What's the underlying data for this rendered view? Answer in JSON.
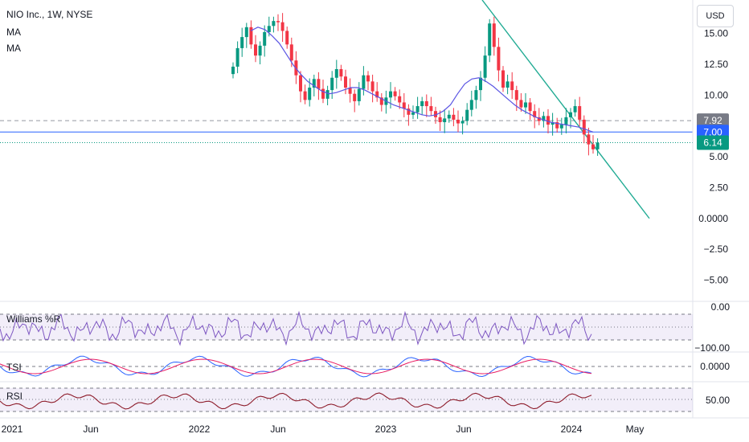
{
  "header": {
    "title": "NIO Inc., 1W, NYSE",
    "indicators": [
      "MA",
      "MA"
    ],
    "currency": "USD"
  },
  "price_labels": [
    {
      "text": "7.92",
      "value": 7.92,
      "color": "#787b86"
    },
    {
      "text": "7.00",
      "value": 7.0,
      "color": "#2962ff"
    },
    {
      "text": "6.14",
      "value": 6.14,
      "color": "#089981"
    }
  ],
  "panels": {
    "williams": {
      "label": "Williams %R",
      "ticks": [
        "0.00",
        "−100.00"
      ]
    },
    "tsi": {
      "label": "TSI",
      "ticks": [
        "0.0000"
      ]
    },
    "rsi": {
      "label": "RSI",
      "ticks": [
        "50.00"
      ]
    }
  },
  "colors": {
    "up": "#089981",
    "down": "#f23645",
    "ma": "#5b55e3",
    "trendline": "#22ab94",
    "hline": "#2962ff",
    "williams": "#7e57c2",
    "tsi_line": "#2962ff",
    "tsi_signal": "#e91e63",
    "rsi": "#8e1d2c"
  },
  "chart_data": {
    "type": "candlestick",
    "title": "NIO Inc., 1W, NYSE",
    "x_ticks": [
      "2021",
      "Jun",
      "2022",
      "Jun",
      "2023",
      "Jun",
      "2024",
      "May"
    ],
    "y_ticks": [
      "15.00",
      "12.50",
      "10.00",
      "5.00",
      "2.50",
      "0.0000",
      "−2.50",
      "−5.00"
    ],
    "ylim": [
      -6.5,
      16.2
    ],
    "candles_visible_close": [
      12.3,
      13.8,
      14.7,
      15.5,
      14.1,
      13.2,
      14.0,
      15.1,
      15.6,
      16.0,
      15.9,
      15.2,
      14.1,
      12.8,
      11.6,
      10.3,
      9.6,
      10.6,
      11.3,
      10.5,
      9.7,
      10.4,
      11.4,
      12.1,
      11.5,
      10.6,
      10.1,
      9.5,
      10.5,
      11.6,
      11.1,
      10.3,
      9.8,
      9.2,
      9.8,
      10.3,
      9.9,
      9.4,
      8.9,
      8.4,
      8.6,
      9.1,
      9.5,
      9.1,
      8.7,
      8.2,
      7.8,
      8.1,
      8.4,
      8.0,
      7.7,
      7.9,
      8.8,
      9.6,
      10.4,
      11.4,
      13.2,
      15.8,
      13.9,
      12.0,
      10.6,
      11.1,
      10.4,
      9.6,
      9.0,
      9.4,
      8.7,
      8.2,
      7.9,
      8.3,
      7.6,
      7.8,
      7.3,
      7.6,
      8.2,
      8.6,
      9.1,
      8.0,
      6.8,
      6.0,
      5.6,
      6.14
    ],
    "ma_line_visible": [
      15.2,
      15.5,
      15.3,
      14.8,
      14.2,
      13.3,
      12.4,
      11.7,
      11.1,
      10.7,
      10.3,
      10.1,
      10.2,
      10.4,
      10.6,
      10.6,
      10.4,
      10.1,
      9.8,
      9.5,
      9.2,
      9.0,
      8.8,
      8.6,
      8.4,
      8.3,
      8.4,
      8.7,
      9.2,
      10.1,
      10.9,
      11.3,
      11.4,
      11.1,
      10.7,
      10.2,
      9.7,
      9.2,
      8.8,
      8.5,
      8.2,
      8.0,
      7.8,
      7.7,
      7.6,
      7.5,
      7.4,
      7.2,
      7.0
    ],
    "trendline": [
      {
        "date": "2023-07",
        "value": 20.0
      },
      {
        "date": "2024-03",
        "value": 0.0
      }
    ],
    "horizontal_lines": [
      7.92,
      7.0,
      6.14
    ],
    "williams_r_range": [
      -100,
      0
    ],
    "tsi_zero": 0,
    "rsi_level": 50
  }
}
